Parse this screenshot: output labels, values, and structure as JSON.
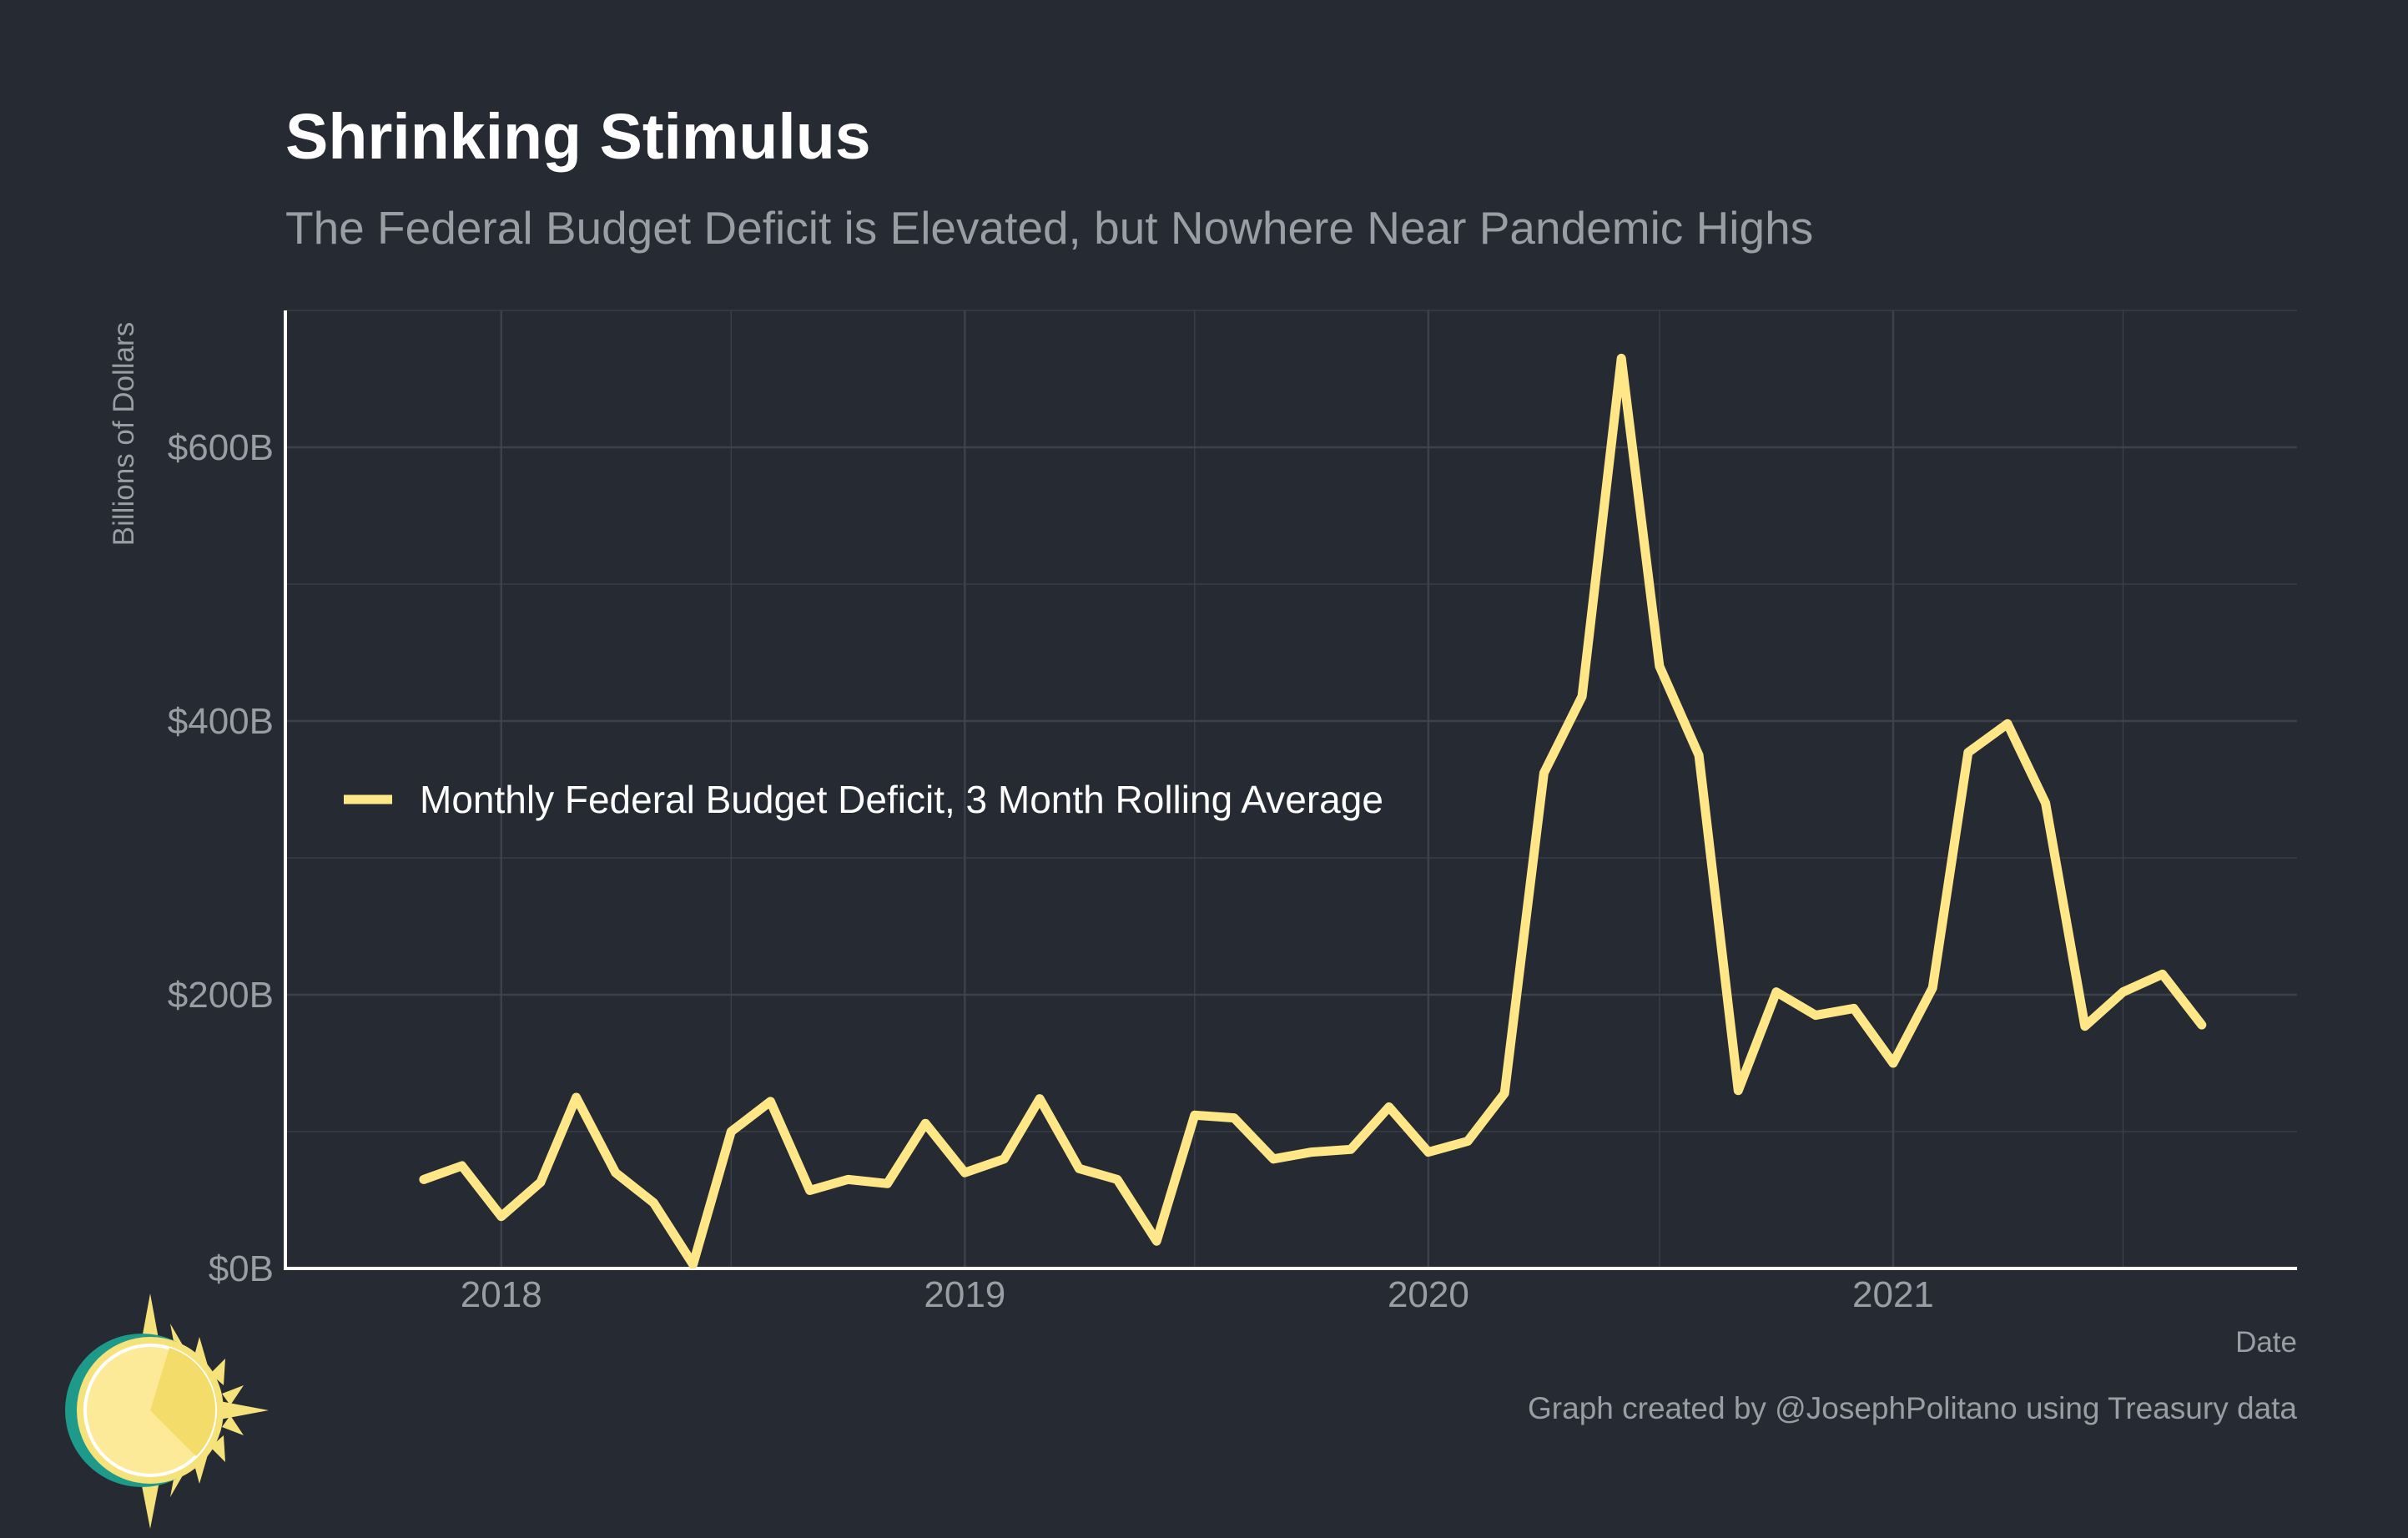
{
  "colors": {
    "background": "#252a33",
    "line": "#ffe787",
    "grid": "#3c414a",
    "axis": "#ffffff",
    "muted_text": "#9a9da3",
    "logo_ring": "#1e9a8a",
    "logo_sun": "#f6e27a",
    "logo_face": "#fcea98"
  },
  "icons": {
    "logo": "sun-clock-logo-icon"
  },
  "chart_data": {
    "type": "line",
    "title": "Shrinking Stimulus",
    "subtitle": "The Federal Budget Deficit is Elevated, but Nowhere Near Pandemic Highs",
    "xlabel": "Date",
    "ylabel": "Billions of Dollars",
    "caption": "Graph created by @JosephPolitano using Treasury data",
    "xlim": [
      "2017-07-15",
      "2021-11-15"
    ],
    "ylim": [
      0,
      700
    ],
    "x_ticks": [
      {
        "date": "2018-01-01",
        "label": "2018"
      },
      {
        "date": "2019-01-01",
        "label": "2019"
      },
      {
        "date": "2020-01-01",
        "label": "2020"
      },
      {
        "date": "2021-01-01",
        "label": "2021"
      }
    ],
    "y_ticks": [
      {
        "value": 0,
        "label": "$0B"
      },
      {
        "value": 200,
        "label": "$200B"
      },
      {
        "value": 400,
        "label": "$400B"
      },
      {
        "value": 600,
        "label": "$600B"
      }
    ],
    "grid": true,
    "legend": "left-center",
    "series": [
      {
        "name": "Monthly Federal Budget Deficit, 3 Month Rolling Average",
        "x": [
          "2017-11-01",
          "2017-12-01",
          "2018-01-01",
          "2018-02-01",
          "2018-03-01",
          "2018-04-01",
          "2018-05-01",
          "2018-06-01",
          "2018-07-01",
          "2018-08-01",
          "2018-09-01",
          "2018-10-01",
          "2018-11-01",
          "2018-12-01",
          "2019-01-01",
          "2019-02-01",
          "2019-03-01",
          "2019-04-01",
          "2019-05-01",
          "2019-06-01",
          "2019-07-01",
          "2019-08-01",
          "2019-09-01",
          "2019-10-01",
          "2019-11-01",
          "2019-12-01",
          "2020-01-01",
          "2020-02-01",
          "2020-03-01",
          "2020-04-01",
          "2020-05-01",
          "2020-06-01",
          "2020-07-01",
          "2020-08-01",
          "2020-09-01",
          "2020-10-01",
          "2020-11-01",
          "2020-12-01",
          "2021-01-01",
          "2021-02-01",
          "2021-03-01",
          "2021-04-01",
          "2021-05-01",
          "2021-06-01",
          "2021-07-01",
          "2021-08-01",
          "2021-09-01"
        ],
        "y": [
          65,
          75,
          38,
          63,
          125,
          70,
          48,
          3,
          100,
          122,
          57,
          65,
          62,
          106,
          70,
          80,
          124,
          73,
          65,
          20,
          112,
          110,
          80,
          85,
          87,
          118,
          85,
          93,
          128,
          362,
          418,
          665,
          440,
          375,
          130,
          202,
          185,
          190,
          150,
          205,
          377,
          398,
          340,
          177,
          202,
          215,
          178
        ]
      }
    ]
  }
}
